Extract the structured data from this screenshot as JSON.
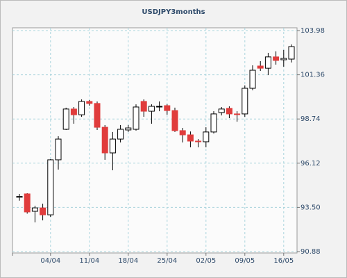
{
  "chart_data": {
    "type": "candlestick",
    "title": "USDJPY3months",
    "categories": [
      null,
      null,
      null,
      null,
      "04/04",
      null,
      null,
      null,
      null,
      "11/04",
      null,
      null,
      null,
      null,
      "18/04",
      null,
      null,
      null,
      null,
      "25/04",
      null,
      null,
      null,
      null,
      "02/05",
      null,
      null,
      null,
      null,
      "09/05",
      null,
      null,
      null,
      null,
      "16/05",
      null
    ],
    "open": [
      94.1,
      94.3,
      93.27,
      93.47,
      93.06,
      96.32,
      98.13,
      99.33,
      98.99,
      99.78,
      99.66,
      98.25,
      96.73,
      97.55,
      98.09,
      98.13,
      99.78,
      99.2,
      99.45,
      99.53,
      99.24,
      98.05,
      97.8,
      97.43,
      97.39,
      97.97,
      99.12,
      99.37,
      99.04,
      99.04,
      100.56,
      101.88,
      101.75,
      102.42,
      102.25,
      102.29
    ],
    "high": [
      94.3,
      94.34,
      93.6,
      93.72,
      96.36,
      97.72,
      99.41,
      99.45,
      99.9,
      99.86,
      99.78,
      98.38,
      97.97,
      98.38,
      98.38,
      99.61,
      99.9,
      99.61,
      99.78,
      99.61,
      99.41,
      98.21,
      98.0,
      97.55,
      98.25,
      99.2,
      99.45,
      99.49,
      99.2,
      100.73,
      101.92,
      102.17,
      102.66,
      102.75,
      102.83,
      103.16
    ],
    "low": [
      93.9,
      93.13,
      92.61,
      92.73,
      92.94,
      95.74,
      98.09,
      98.46,
      98.87,
      99.53,
      98.09,
      96.32,
      95.7,
      97.35,
      97.97,
      98.05,
      98.87,
      98.46,
      99.2,
      98.99,
      97.97,
      97.35,
      97.06,
      97.06,
      97.06,
      97.88,
      98.95,
      98.79,
      98.58,
      98.87,
      100.44,
      101.59,
      101.34,
      101.96,
      101.84,
      102.09
    ],
    "close": [
      94.15,
      93.23,
      93.47,
      93.06,
      96.32,
      97.55,
      99.33,
      98.99,
      99.78,
      99.66,
      98.25,
      96.73,
      97.55,
      98.13,
      98.21,
      99.45,
      99.2,
      99.49,
      99.49,
      99.24,
      98.05,
      97.8,
      97.43,
      97.39,
      97.97,
      99.04,
      99.33,
      99.04,
      99.02,
      100.56,
      101.63,
      101.75,
      102.42,
      102.21,
      102.33,
      103.03
    ],
    "up_color": "#ffffff",
    "down_color": "#e03c3c",
    "ylim": [
      90.88,
      103.98
    ],
    "yticks": [
      90.88,
      {
        "value": 93.5,
        "label": "93.50"
      },
      96.12,
      98.74,
      101.36,
      103.98
    ],
    "grid": true
  }
}
